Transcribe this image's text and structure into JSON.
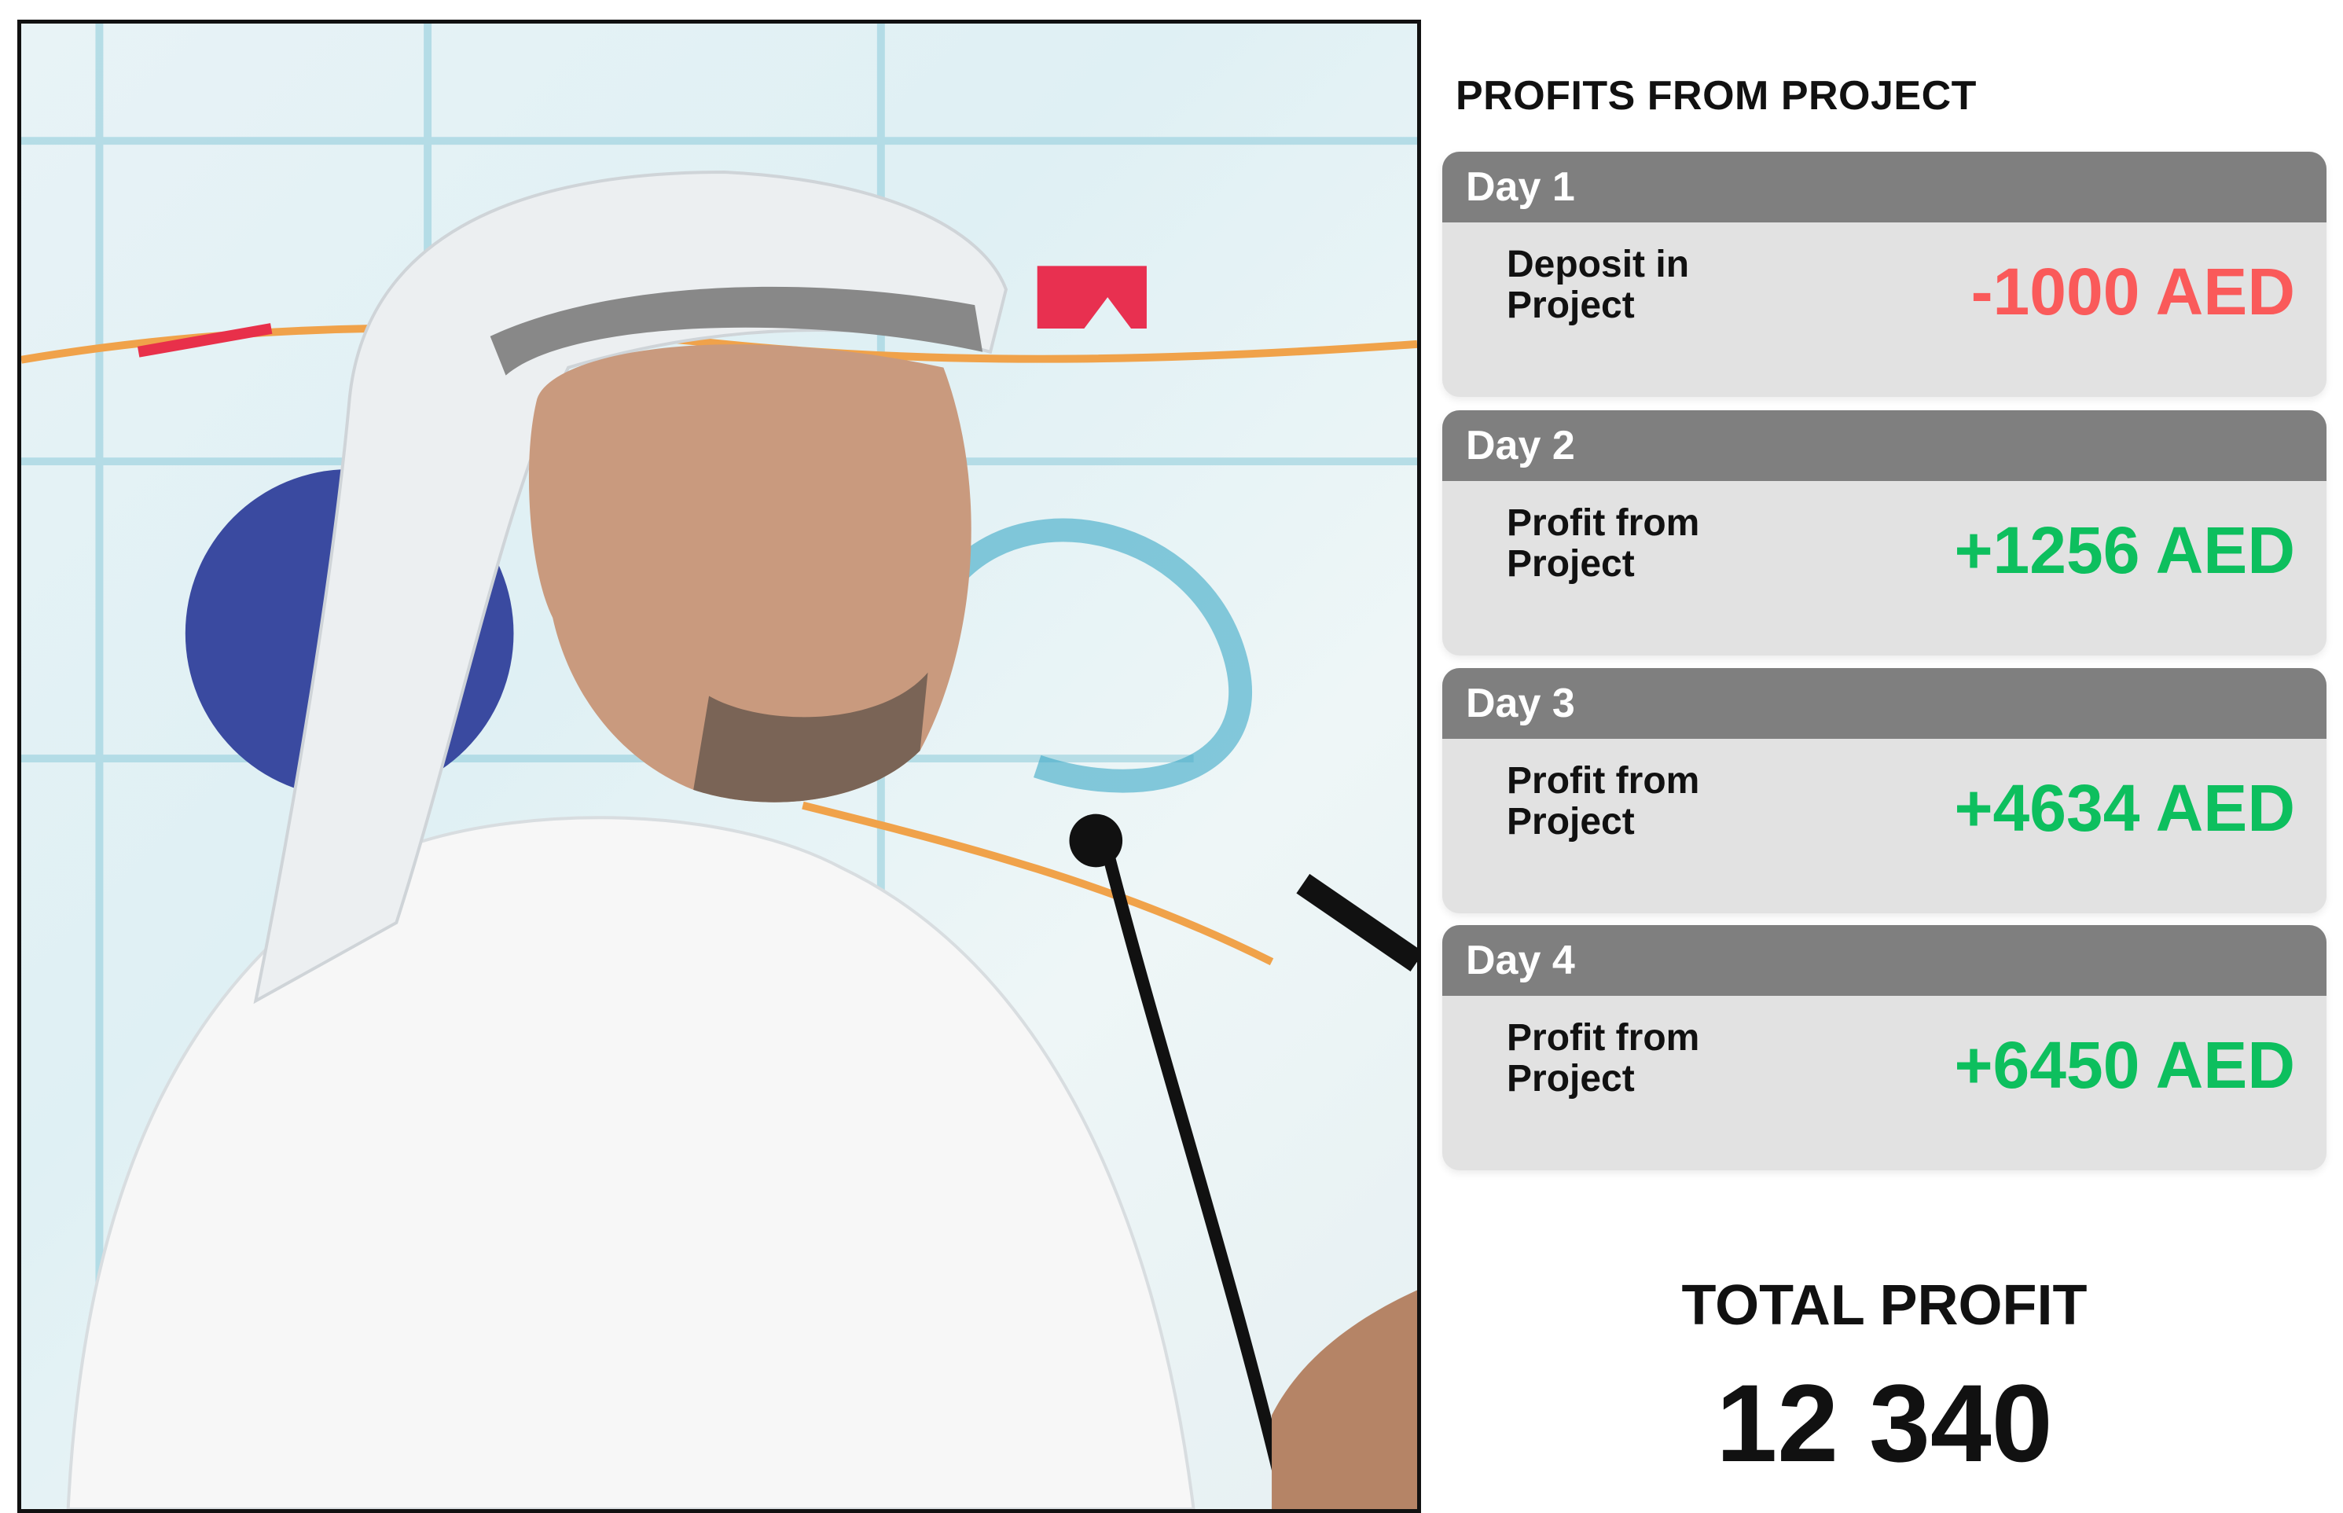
{
  "photo": {
    "subject": "speaker-photo"
  },
  "panel": {
    "title": "PROFITS FROM PROJECT",
    "days": [
      {
        "label": "Day 1",
        "description": "Deposit in Project",
        "amount": "-1000 AED",
        "type": "negative"
      },
      {
        "label": "Day 2",
        "description": "Profit from Project",
        "amount": "+1256 AED",
        "type": "positive"
      },
      {
        "label": "Day 3",
        "description": "Profit from Project",
        "amount": "+4634 AED",
        "type": "positive"
      },
      {
        "label": "Day 4",
        "description": "Profit from Project",
        "amount": "+6450 AED",
        "type": "positive"
      }
    ],
    "total_label": "TOTAL PROFIT",
    "total_value": "12 340"
  },
  "colors": {
    "negative": "#fa5a5a",
    "positive": "#0dbf5e",
    "header": "#7f7f7f",
    "card": "#e2e2e2"
  }
}
